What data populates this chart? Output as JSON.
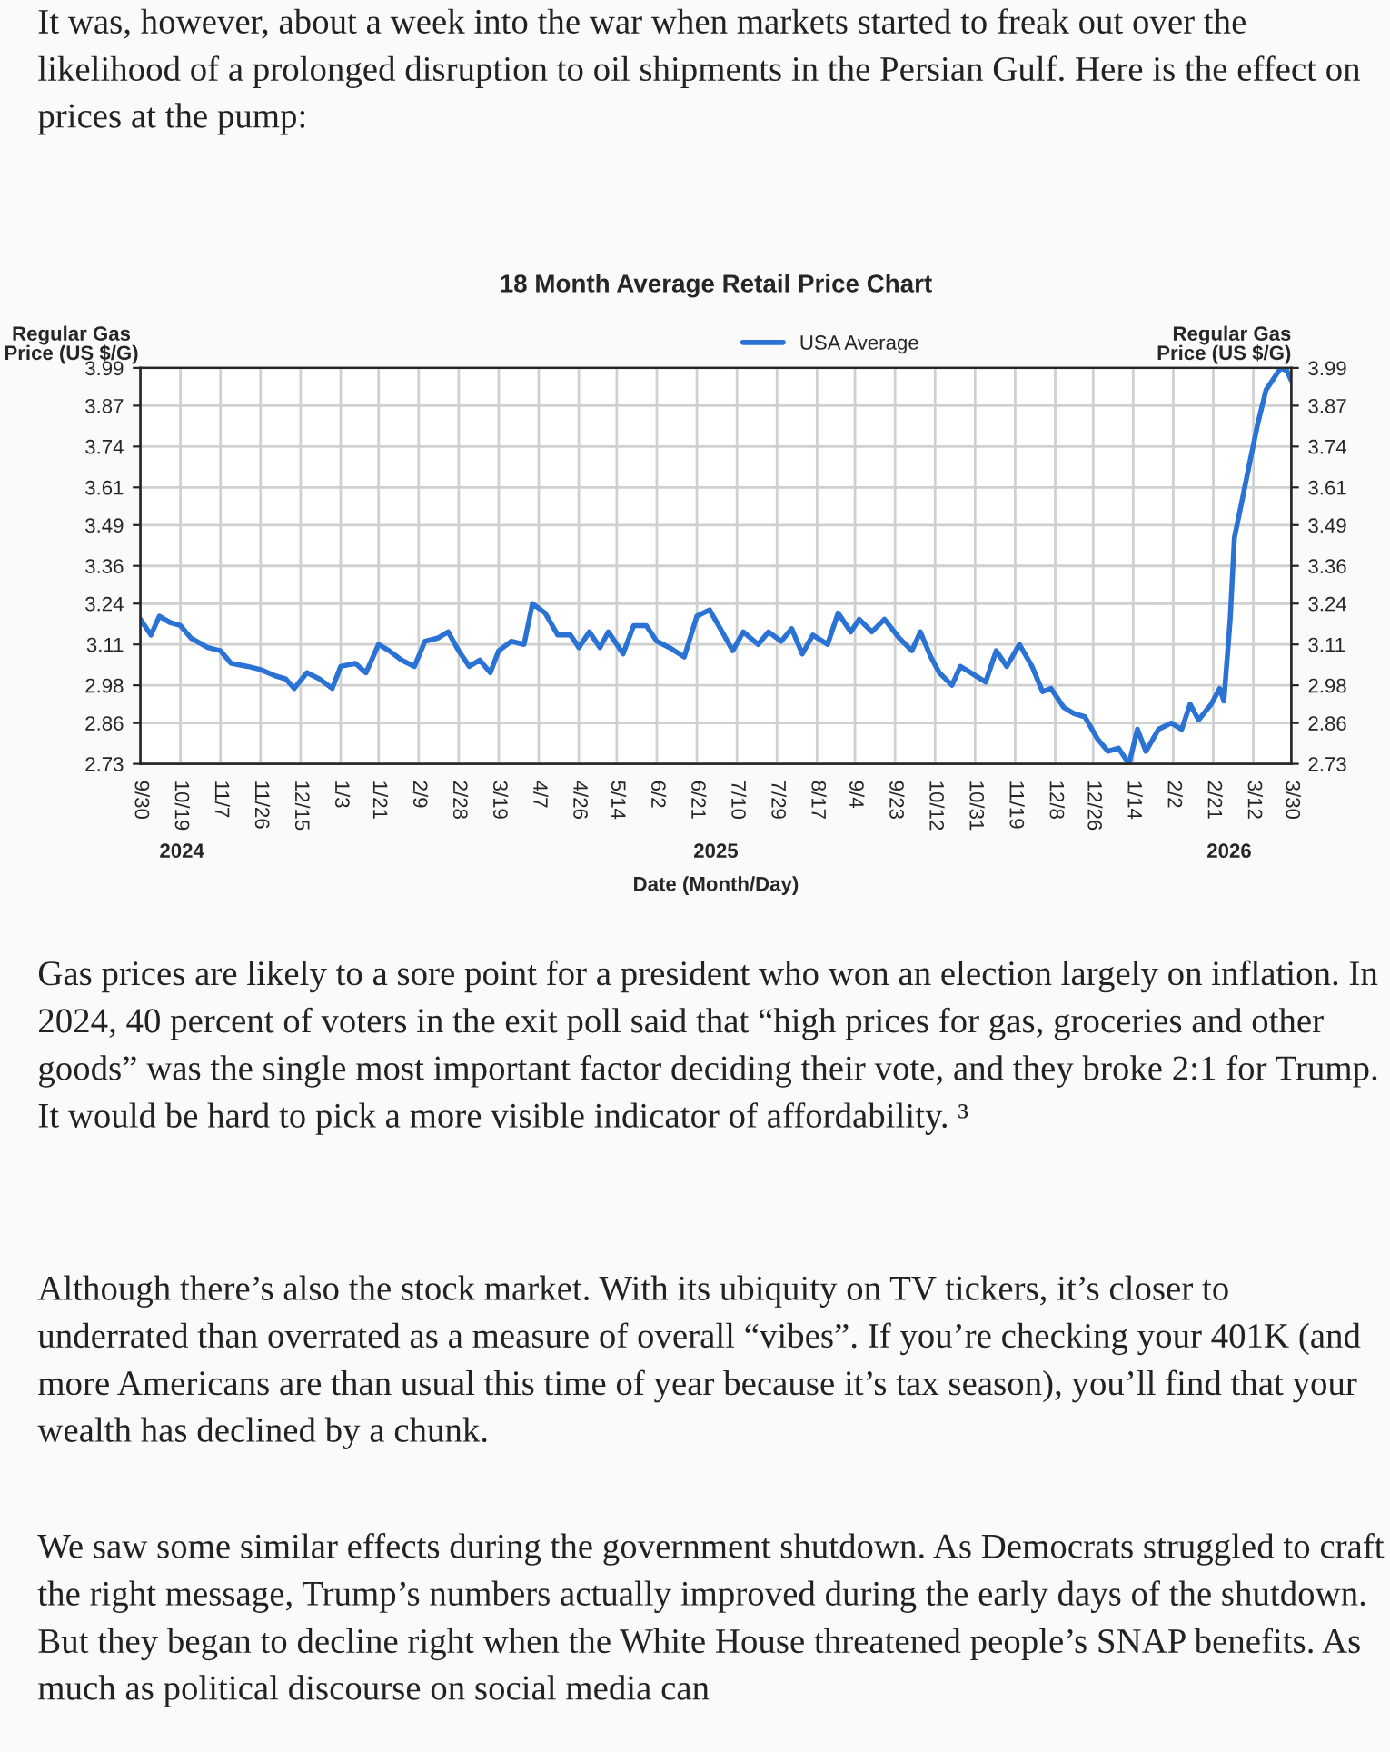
{
  "chart_data": {
    "type": "line",
    "title": "18 Month Average Retail Price Chart",
    "xlabel": "Date (Month/Day)",
    "ylabel": "Regular Gas\nPrice (US $/G)",
    "y2label": "Regular Gas\nPrice (US $/G)",
    "series": [
      {
        "name": "USA Average",
        "color": "#2a72d4",
        "x": [
          "2024-09-30",
          "2024-10-05",
          "2024-10-09",
          "2024-10-14",
          "2024-10-19",
          "2024-10-24",
          "2024-11-01",
          "2024-11-07",
          "2024-11-12",
          "2024-11-20",
          "2024-11-26",
          "2024-12-03",
          "2024-12-08",
          "2024-12-12",
          "2024-12-18",
          "2024-12-24",
          "2024-12-30",
          "2025-01-03",
          "2025-01-10",
          "2025-01-15",
          "2025-01-21",
          "2025-01-26",
          "2025-02-01",
          "2025-02-07",
          "2025-02-12",
          "2025-02-18",
          "2025-02-23",
          "2025-02-28",
          "2025-03-05",
          "2025-03-10",
          "2025-03-15",
          "2025-03-19",
          "2025-03-25",
          "2025-03-31",
          "2025-04-04",
          "2025-04-10",
          "2025-04-16",
          "2025-04-22",
          "2025-04-26",
          "2025-05-01",
          "2025-05-06",
          "2025-05-10",
          "2025-05-17",
          "2025-05-22",
          "2025-05-28",
          "2025-06-02",
          "2025-06-08",
          "2025-06-15",
          "2025-06-21",
          "2025-06-27",
          "2025-07-03",
          "2025-07-08",
          "2025-07-13",
          "2025-07-20",
          "2025-07-25",
          "2025-07-31",
          "2025-08-05",
          "2025-08-10",
          "2025-08-15",
          "2025-08-22",
          "2025-08-27",
          "2025-09-02",
          "2025-09-06",
          "2025-09-12",
          "2025-09-18",
          "2025-09-25",
          "2025-10-01",
          "2025-10-05",
          "2025-10-10",
          "2025-10-14",
          "2025-10-20",
          "2025-10-24",
          "2025-10-29",
          "2025-11-05",
          "2025-11-10",
          "2025-11-15",
          "2025-11-21",
          "2025-11-27",
          "2025-12-02",
          "2025-12-06",
          "2025-12-12",
          "2025-12-17",
          "2025-12-22",
          "2025-12-28",
          "2026-01-02",
          "2026-01-07",
          "2026-01-12",
          "2026-01-16",
          "2026-01-20",
          "2026-01-26",
          "2026-02-01",
          "2026-02-06",
          "2026-02-10",
          "2026-02-14",
          "2026-02-20",
          "2026-02-24",
          "2026-02-26",
          "2026-03-01",
          "2026-03-03",
          "2026-03-07",
          "2026-03-10",
          "2026-03-14",
          "2026-03-18",
          "2026-03-22",
          "2026-03-25",
          "2026-03-28",
          "2026-03-30"
        ],
        "values": [
          3.19,
          3.14,
          3.2,
          3.18,
          3.17,
          3.13,
          3.1,
          3.09,
          3.05,
          3.04,
          3.03,
          3.01,
          3.0,
          2.97,
          3.02,
          3.0,
          2.97,
          3.04,
          3.05,
          3.02,
          3.11,
          3.09,
          3.06,
          3.04,
          3.12,
          3.13,
          3.15,
          3.09,
          3.04,
          3.06,
          3.02,
          3.09,
          3.12,
          3.11,
          3.24,
          3.21,
          3.14,
          3.14,
          3.1,
          3.15,
          3.1,
          3.15,
          3.08,
          3.17,
          3.17,
          3.12,
          3.1,
          3.07,
          3.2,
          3.22,
          3.15,
          3.09,
          3.15,
          3.11,
          3.15,
          3.12,
          3.16,
          3.08,
          3.14,
          3.11,
          3.21,
          3.15,
          3.19,
          3.15,
          3.19,
          3.13,
          3.09,
          3.15,
          3.07,
          3.02,
          2.98,
          3.04,
          3.02,
          2.99,
          3.09,
          3.04,
          3.11,
          3.04,
          2.96,
          2.97,
          2.91,
          2.89,
          2.88,
          2.81,
          2.77,
          2.78,
          2.73,
          2.84,
          2.77,
          2.84,
          2.86,
          2.84,
          2.92,
          2.87,
          2.92,
          2.97,
          2.93,
          3.19,
          3.45,
          3.58,
          3.68,
          3.81,
          3.92,
          3.96,
          3.99,
          3.98,
          3.95
        ]
      }
    ],
    "xlim": [
      "2024-09-30",
      "2026-03-30"
    ],
    "xticks": [
      {
        "value": "2024-09-30",
        "label": "9/30"
      },
      {
        "value": "2024-10-19",
        "label": "10/19"
      },
      {
        "value": "2024-11-07",
        "label": "11/7"
      },
      {
        "value": "2024-11-26",
        "label": "11/26"
      },
      {
        "value": "2024-12-15",
        "label": "12/15"
      },
      {
        "value": "2025-01-03",
        "label": "1/3"
      },
      {
        "value": "2025-01-21",
        "label": "1/21"
      },
      {
        "value": "2025-02-09",
        "label": "2/9"
      },
      {
        "value": "2025-02-28",
        "label": "2/28"
      },
      {
        "value": "2025-03-19",
        "label": "3/19"
      },
      {
        "value": "2025-04-07",
        "label": "4/7"
      },
      {
        "value": "2025-04-26",
        "label": "4/26"
      },
      {
        "value": "2025-05-14",
        "label": "5/14"
      },
      {
        "value": "2025-06-02",
        "label": "6/2"
      },
      {
        "value": "2025-06-21",
        "label": "6/21"
      },
      {
        "value": "2025-07-10",
        "label": "7/10"
      },
      {
        "value": "2025-07-29",
        "label": "7/29"
      },
      {
        "value": "2025-08-17",
        "label": "8/17"
      },
      {
        "value": "2025-09-04",
        "label": "9/4"
      },
      {
        "value": "2025-09-23",
        "label": "9/23"
      },
      {
        "value": "2025-10-12",
        "label": "10/12"
      },
      {
        "value": "2025-10-31",
        "label": "10/31"
      },
      {
        "value": "2025-11-19",
        "label": "11/19"
      },
      {
        "value": "2025-12-08",
        "label": "12/8"
      },
      {
        "value": "2025-12-26",
        "label": "12/26"
      },
      {
        "value": "2026-01-14",
        "label": "1/14"
      },
      {
        "value": "2026-02-02",
        "label": "2/2"
      },
      {
        "value": "2026-02-21",
        "label": "2/21"
      },
      {
        "value": "2026-03-12",
        "label": "3/12"
      },
      {
        "value": "2026-03-30",
        "label": "3/30"
      }
    ],
    "ylim": [
      2.73,
      3.99
    ],
    "yticks": [
      2.73,
      2.86,
      2.98,
      3.11,
      3.24,
      3.36,
      3.49,
      3.61,
      3.74,
      3.87,
      3.99
    ],
    "y2lim": [
      2.73,
      3.99
    ],
    "y2ticks": [
      2.73,
      2.86,
      2.98,
      3.11,
      3.24,
      3.36,
      3.49,
      3.61,
      3.74,
      3.87,
      3.99
    ],
    "grid": true,
    "legend": "top",
    "annotations": [
      "It was, however, about a week into the war when markets started to freak out over the likelihood of a prolonged disruption to oil shipments in the Persian Gulf. Here is the effect on prices at the pump:",
      "Gas prices are likely to a sore point for a president who won an election largely on inflation. In 2024, 40 percent of voters in the exit poll said that “high prices for gas, groceries and other goods” was the single most important factor deciding their vote, and they broke 2:1 for Trump. It would be hard to pick a more visible indicator of affordability. ³",
      "Although there’s also the stock market. With its ubiquity on TV tickers, it’s closer to underrated than overrated as a measure of overall “vibes”. If you’re checking your 401K (and more Americans are than usual this time of year because it’s tax season), you’ll find that your wealth has declined by a chunk.",
      "We saw some similar effects during the government shutdown. As Democrats struggled to craft the right message, Trump’s numbers actually improved during the early days of the shutdown. But they began to decline right when the White House threatened people’s SNAP benefits. As much as political discourse on social media can",
      "2024",
      "2025",
      "2026"
    ]
  }
}
